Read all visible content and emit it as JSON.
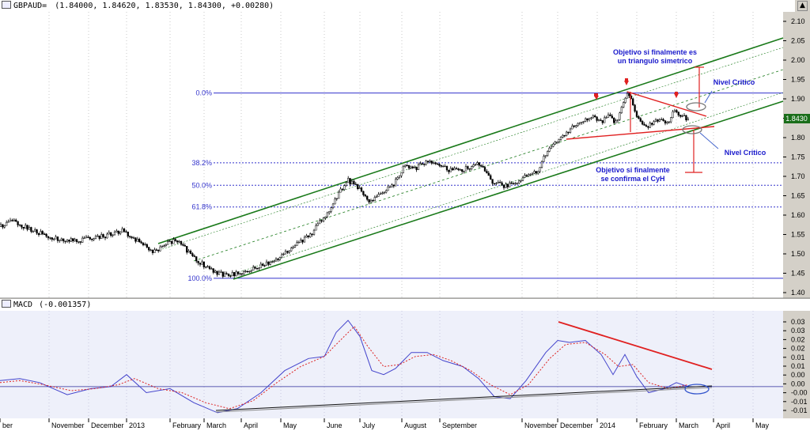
{
  "price_panel": {
    "title": "GBPAUD=",
    "ohlc": "(1.84000, 1.84620, 1.83530, 1.84300, +0.00280)",
    "last_price": "1.8430"
  },
  "macd_panel": {
    "title": "MACD",
    "value": "(-0.001357)"
  },
  "window": {
    "scroll_up": "▲"
  },
  "chart_data": [
    {
      "type": "candlestick",
      "ylim": [
        1.4,
        2.1
      ],
      "yticks": [
        "2.10",
        "2.05",
        "2.00",
        "1.95",
        "1.90",
        "1.85",
        "1.80",
        "1.75",
        "1.70",
        "1.65",
        "1.60",
        "1.55",
        "1.50",
        "1.45",
        "1.40"
      ],
      "fibonacci_levels": [
        {
          "label": "0.0%",
          "value": 1.915
        },
        {
          "label": "38.2%",
          "value": 1.735
        },
        {
          "label": "50.0%",
          "value": 1.677
        },
        {
          "label": "61.8%",
          "value": 1.621
        },
        {
          "label": "100.0%",
          "value": 1.437
        }
      ],
      "annotations": [
        {
          "text": [
            "Objetivo si finalmente es",
            "un triangulo simetrico"
          ]
        },
        {
          "text": [
            "Nivel Critico"
          ]
        },
        {
          "text": [
            "Nivel Critico"
          ]
        },
        {
          "text": [
            "Objetivo si finalmente",
            "se confirma el CyH"
          ]
        }
      ],
      "price_path": [
        {
          "x": 0,
          "y": 1.57
        },
        {
          "x": 18,
          "y": 1.585
        },
        {
          "x": 40,
          "y": 1.56
        },
        {
          "x": 70,
          "y": 1.54
        },
        {
          "x": 100,
          "y": 1.535
        },
        {
          "x": 130,
          "y": 1.545
        },
        {
          "x": 155,
          "y": 1.56
        },
        {
          "x": 172,
          "y": 1.535
        },
        {
          "x": 195,
          "y": 1.505
        },
        {
          "x": 215,
          "y": 1.53
        },
        {
          "x": 225,
          "y": 1.535
        },
        {
          "x": 240,
          "y": 1.5
        },
        {
          "x": 255,
          "y": 1.475
        },
        {
          "x": 270,
          "y": 1.455
        },
        {
          "x": 285,
          "y": 1.443
        },
        {
          "x": 300,
          "y": 1.45
        },
        {
          "x": 320,
          "y": 1.46
        },
        {
          "x": 345,
          "y": 1.48
        },
        {
          "x": 370,
          "y": 1.515
        },
        {
          "x": 395,
          "y": 1.555
        },
        {
          "x": 415,
          "y": 1.61
        },
        {
          "x": 430,
          "y": 1.66
        },
        {
          "x": 440,
          "y": 1.69
        },
        {
          "x": 455,
          "y": 1.665
        },
        {
          "x": 468,
          "y": 1.635
        },
        {
          "x": 480,
          "y": 1.65
        },
        {
          "x": 498,
          "y": 1.68
        },
        {
          "x": 512,
          "y": 1.73
        },
        {
          "x": 525,
          "y": 1.72
        },
        {
          "x": 540,
          "y": 1.74
        },
        {
          "x": 555,
          "y": 1.73
        },
        {
          "x": 570,
          "y": 1.715
        },
        {
          "x": 590,
          "y": 1.72
        },
        {
          "x": 605,
          "y": 1.735
        },
        {
          "x": 620,
          "y": 1.69
        },
        {
          "x": 635,
          "y": 1.675
        },
        {
          "x": 650,
          "y": 1.68
        },
        {
          "x": 665,
          "y": 1.7
        },
        {
          "x": 680,
          "y": 1.715
        },
        {
          "x": 690,
          "y": 1.76
        },
        {
          "x": 705,
          "y": 1.795
        },
        {
          "x": 720,
          "y": 1.82
        },
        {
          "x": 735,
          "y": 1.845
        },
        {
          "x": 750,
          "y": 1.855
        },
        {
          "x": 760,
          "y": 1.84
        },
        {
          "x": 770,
          "y": 1.855
        },
        {
          "x": 778,
          "y": 1.835
        },
        {
          "x": 790,
          "y": 1.9
        },
        {
          "x": 795,
          "y": 1.915
        },
        {
          "x": 805,
          "y": 1.855
        },
        {
          "x": 815,
          "y": 1.825
        },
        {
          "x": 830,
          "y": 1.845
        },
        {
          "x": 845,
          "y": 1.84
        },
        {
          "x": 852,
          "y": 1.87
        },
        {
          "x": 862,
          "y": 1.855
        },
        {
          "x": 872,
          "y": 1.843
        }
      ]
    },
    {
      "type": "line",
      "ylim": [
        -0.015,
        0.035
      ],
      "yticks": [
        "0.03",
        "0.03",
        "0.02",
        "0.02",
        "0.01",
        "0.01",
        "0.00",
        "0.00",
        "-0.00",
        "-0.01",
        "-0.01"
      ],
      "series": [
        {
          "values": [
            {
              "x": 0,
              "y": 0.003
            },
            {
              "x": 25,
              "y": 0.004
            },
            {
              "x": 50,
              "y": 0.002
            },
            {
              "x": 85,
              "y": -0.004
            },
            {
              "x": 115,
              "y": -0.001
            },
            {
              "x": 140,
              "y": 0.0
            },
            {
              "x": 160,
              "y": 0.006
            },
            {
              "x": 185,
              "y": -0.003
            },
            {
              "x": 215,
              "y": -0.001
            },
            {
              "x": 245,
              "y": -0.008
            },
            {
              "x": 275,
              "y": -0.013
            },
            {
              "x": 300,
              "y": -0.011
            },
            {
              "x": 330,
              "y": -0.003
            },
            {
              "x": 360,
              "y": 0.008
            },
            {
              "x": 390,
              "y": 0.014
            },
            {
              "x": 410,
              "y": 0.015
            },
            {
              "x": 425,
              "y": 0.027
            },
            {
              "x": 440,
              "y": 0.033
            },
            {
              "x": 455,
              "y": 0.025
            },
            {
              "x": 470,
              "y": 0.008
            },
            {
              "x": 485,
              "y": 0.006
            },
            {
              "x": 500,
              "y": 0.009
            },
            {
              "x": 520,
              "y": 0.017
            },
            {
              "x": 540,
              "y": 0.017
            },
            {
              "x": 560,
              "y": 0.013
            },
            {
              "x": 585,
              "y": 0.01
            },
            {
              "x": 605,
              "y": 0.004
            },
            {
              "x": 625,
              "y": -0.005
            },
            {
              "x": 645,
              "y": -0.006
            },
            {
              "x": 665,
              "y": 0.003
            },
            {
              "x": 690,
              "y": 0.017
            },
            {
              "x": 705,
              "y": 0.023
            },
            {
              "x": 720,
              "y": 0.022
            },
            {
              "x": 740,
              "y": 0.023
            },
            {
              "x": 760,
              "y": 0.016
            },
            {
              "x": 775,
              "y": 0.006
            },
            {
              "x": 790,
              "y": 0.016
            },
            {
              "x": 805,
              "y": 0.005
            },
            {
              "x": 820,
              "y": -0.003
            },
            {
              "x": 840,
              "y": -0.001
            },
            {
              "x": 855,
              "y": 0.002
            },
            {
              "x": 870,
              "y": 0.0
            }
          ]
        },
        {
          "values": [
            {
              "x": 0,
              "y": 0.002
            },
            {
              "x": 25,
              "y": 0.003
            },
            {
              "x": 55,
              "y": 0.001
            },
            {
              "x": 90,
              "y": -0.002
            },
            {
              "x": 120,
              "y": -0.001
            },
            {
              "x": 150,
              "y": 0.001
            },
            {
              "x": 170,
              "y": 0.004
            },
            {
              "x": 200,
              "y": -0.001
            },
            {
              "x": 230,
              "y": -0.003
            },
            {
              "x": 260,
              "y": -0.008
            },
            {
              "x": 290,
              "y": -0.011
            },
            {
              "x": 320,
              "y": -0.007
            },
            {
              "x": 350,
              "y": 0.002
            },
            {
              "x": 380,
              "y": 0.01
            },
            {
              "x": 410,
              "y": 0.015
            },
            {
              "x": 430,
              "y": 0.023
            },
            {
              "x": 448,
              "y": 0.03
            },
            {
              "x": 465,
              "y": 0.02
            },
            {
              "x": 485,
              "y": 0.01
            },
            {
              "x": 505,
              "y": 0.011
            },
            {
              "x": 525,
              "y": 0.015
            },
            {
              "x": 548,
              "y": 0.016
            },
            {
              "x": 570,
              "y": 0.013
            },
            {
              "x": 595,
              "y": 0.008
            },
            {
              "x": 620,
              "y": 0.001
            },
            {
              "x": 645,
              "y": -0.004
            },
            {
              "x": 668,
              "y": 0.001
            },
            {
              "x": 695,
              "y": 0.014
            },
            {
              "x": 715,
              "y": 0.021
            },
            {
              "x": 740,
              "y": 0.022
            },
            {
              "x": 765,
              "y": 0.016
            },
            {
              "x": 782,
              "y": 0.01
            },
            {
              "x": 800,
              "y": 0.011
            },
            {
              "x": 820,
              "y": 0.002
            },
            {
              "x": 845,
              "y": -0.001
            },
            {
              "x": 870,
              "y": 0.001
            }
          ]
        }
      ]
    }
  ],
  "x_axis": {
    "labels": [
      {
        "text": "ber",
        "x": 0
      },
      {
        "text": "November",
        "x": 62
      },
      {
        "text": "December",
        "x": 112
      },
      {
        "text": "2013",
        "x": 160
      },
      {
        "text": "February",
        "x": 215
      },
      {
        "text": "March",
        "x": 258
      },
      {
        "text": "April",
        "x": 305
      },
      {
        "text": "May",
        "x": 355
      },
      {
        "text": "June",
        "x": 410
      },
      {
        "text": "July",
        "x": 455
      },
      {
        "text": "August",
        "x": 508
      },
      {
        "text": "September",
        "x": 556
      },
      {
        "text": "November",
        "x": 660
      },
      {
        "text": "December",
        "x": 705
      },
      {
        "text": "2014",
        "x": 755
      },
      {
        "text": "February",
        "x": 805
      },
      {
        "text": "March",
        "x": 855
      },
      {
        "text": "April",
        "x": 902
      },
      {
        "text": "May",
        "x": 952
      }
    ]
  },
  "colors": {
    "plot_bg": "#ffffff",
    "macd_bg": "#eef0fa",
    "channel": "#1a7a1a",
    "fib": "#3333cc",
    "annotation": "#1a1acc",
    "red": "#e02020",
    "macd_line": "#4444cc",
    "signal_line": "#dd2222"
  }
}
